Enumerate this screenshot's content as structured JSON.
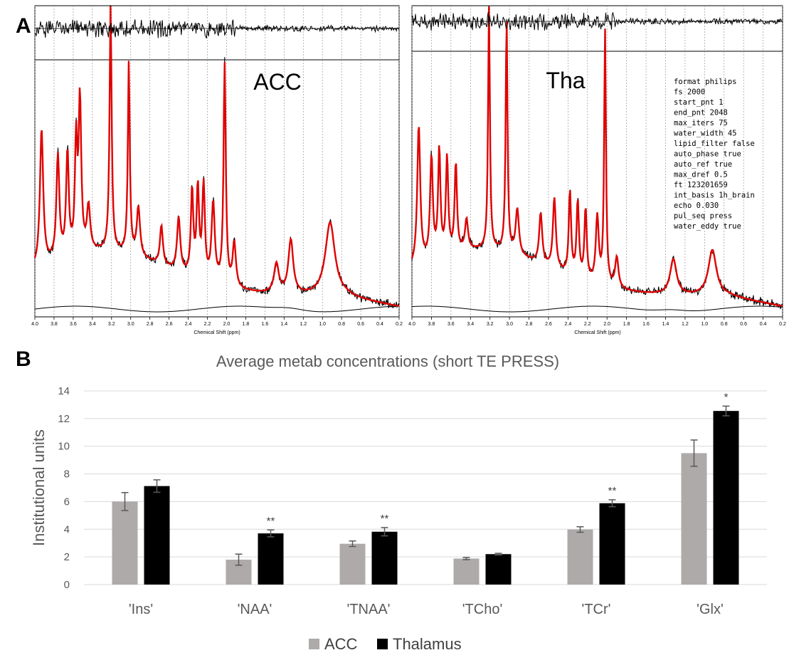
{
  "panel_a": {
    "letter": "A",
    "x_axis_label": "Chemical Shift (ppm)",
    "x_ticks": [
      "4.0",
      "3.8",
      "3.6",
      "3.4",
      "3.2",
      "3.0",
      "2.8",
      "2.6",
      "2.4",
      "2.2",
      "2.0",
      "1.8",
      "1.6",
      "1.4",
      "1.2",
      "1.0",
      "0.8",
      "0.6",
      "0.4",
      "0.2"
    ],
    "colors": {
      "data": "#000000",
      "fit": "#e00000",
      "grid": "#888888"
    },
    "spectra": [
      {
        "label": "ACC"
      },
      {
        "label": "Tha"
      }
    ],
    "fit_parameters": [
      "format philips",
      "fs 2000",
      "start_pnt 1",
      "end_pnt 2048",
      "max_iters 75",
      "water_width 45",
      "lipid_filter false",
      "auto_phase true",
      "auto_ref true",
      "max_dref 0.5",
      "ft 123201659",
      "int_basis 1h_brain",
      "echo 0.030",
      "pul_seq press",
      "water_eddy true"
    ]
  },
  "panel_b": {
    "letter": "B"
  },
  "chart_data": {
    "type": "bar",
    "title": "Average metab concentrations (short TE PRESS)",
    "ylabel": "Institutional units",
    "xlabel": "",
    "ylim": [
      0,
      14
    ],
    "yticks": [
      "0",
      "2",
      "4",
      "6",
      "8",
      "10",
      "12",
      "14"
    ],
    "grid": true,
    "legend_position": "bottom",
    "categories": [
      "'Ins'",
      "'NAA'",
      "'TNAA'",
      "'TCho'",
      "'TCr'",
      "'Glx'"
    ],
    "series": [
      {
        "name": "ACC",
        "color": "#aeaaaa",
        "values": [
          6.0,
          1.8,
          2.95,
          1.88,
          3.98,
          9.5
        ],
        "errors": [
          0.65,
          0.4,
          0.2,
          0.08,
          0.2,
          0.95
        ]
      },
      {
        "name": "Thalamus",
        "color": "#000000",
        "values": [
          7.12,
          3.7,
          3.82,
          2.2,
          5.88,
          12.55
        ],
        "errors": [
          0.45,
          0.25,
          0.3,
          0.06,
          0.25,
          0.35
        ]
      }
    ],
    "significance": [
      "",
      "**",
      "**",
      "",
      "**",
      "*"
    ]
  }
}
